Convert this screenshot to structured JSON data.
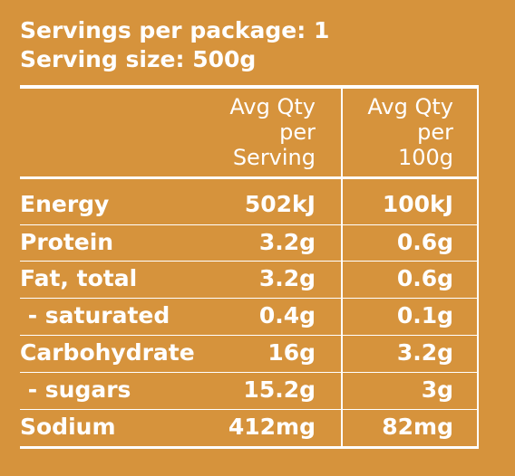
{
  "header": {
    "servings": "Servings per package: 1",
    "serving_size": "Serving size: 500g"
  },
  "columns": {
    "per_serving": [
      "Avg Qty",
      "per",
      "Serving"
    ],
    "per_100g": [
      "Avg Qty",
      "per",
      "100g"
    ]
  },
  "rows": [
    {
      "label": "Energy",
      "per_serving": "502kJ",
      "per_100g": "100kJ"
    },
    {
      "label": "Protein",
      "per_serving": "3.2g",
      "per_100g": "0.6g"
    },
    {
      "label": "Fat, total",
      "per_serving": "3.2g",
      "per_100g": "0.6g"
    },
    {
      "label": " - saturated",
      "per_serving": "0.4g",
      "per_100g": "0.1g"
    },
    {
      "label": "Carbohydrate",
      "per_serving": "16g",
      "per_100g": "3.2g"
    },
    {
      "label": " - sugars",
      "per_serving": "15.2g",
      "per_100g": "3g"
    },
    {
      "label": "Sodium",
      "per_serving": "412mg",
      "per_100g": "82mg"
    }
  ],
  "colors": {
    "background": "#D6933C",
    "text": "#FFFFFF"
  }
}
